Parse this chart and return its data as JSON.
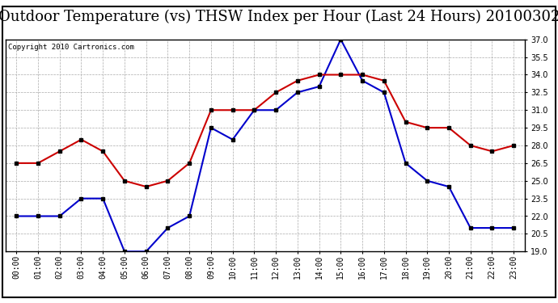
{
  "title": "Outdoor Temperature (vs) THSW Index per Hour (Last 24 Hours) 20100302",
  "copyright": "Copyright 2010 Cartronics.com",
  "hours": [
    "00:00",
    "01:00",
    "02:00",
    "03:00",
    "04:00",
    "05:00",
    "06:00",
    "07:00",
    "08:00",
    "09:00",
    "10:00",
    "11:00",
    "12:00",
    "13:00",
    "14:00",
    "15:00",
    "16:00",
    "17:00",
    "18:00",
    "19:00",
    "20:00",
    "21:00",
    "22:00",
    "23:00"
  ],
  "temp_blue": [
    22.0,
    22.0,
    22.0,
    23.5,
    23.5,
    19.0,
    19.0,
    21.0,
    22.0,
    29.5,
    28.5,
    31.0,
    31.0,
    32.5,
    33.0,
    37.0,
    33.5,
    32.5,
    26.5,
    25.0,
    24.5,
    21.0,
    21.0,
    21.0
  ],
  "temp_red": [
    26.5,
    26.5,
    27.5,
    28.5,
    27.5,
    25.0,
    24.5,
    25.0,
    26.5,
    31.0,
    31.0,
    31.0,
    32.5,
    33.5,
    34.0,
    34.0,
    34.0,
    33.5,
    30.0,
    29.5,
    29.5,
    28.0,
    27.5,
    28.0
  ],
  "ylim": [
    19.0,
    37.0
  ],
  "yticks": [
    19.0,
    20.5,
    22.0,
    23.5,
    25.0,
    26.5,
    28.0,
    29.5,
    31.0,
    32.5,
    34.0,
    35.5,
    37.0
  ],
  "blue_color": "#0000cc",
  "red_color": "#cc0000",
  "bg_color": "#ffffff",
  "grid_color": "#aaaaaa",
  "title_fontsize": 13,
  "copyright_fontsize": 6.5,
  "tick_fontsize": 7,
  "marker": "s",
  "markersize": 3,
  "linewidth": 1.5
}
